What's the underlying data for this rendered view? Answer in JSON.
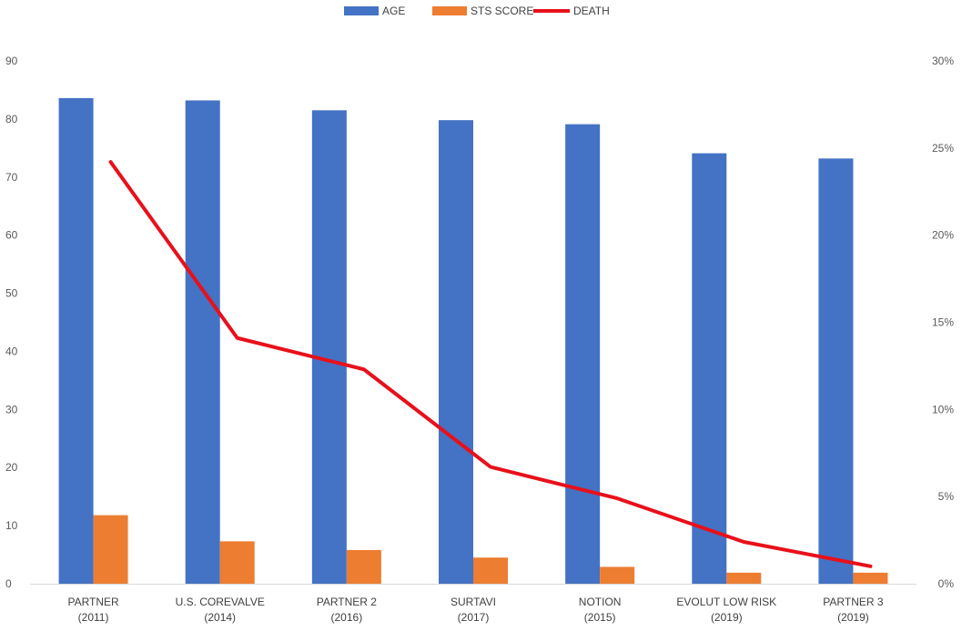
{
  "chart_data": {
    "type": "bar",
    "categories": [
      [
        "PARTNER",
        "(2011)"
      ],
      [
        "U.S. COREVALVE",
        "(2014)"
      ],
      [
        "PARTNER 2",
        "(2016)"
      ],
      [
        "SURTAVI",
        "(2017)"
      ],
      [
        "NOTION",
        "(2015)"
      ],
      [
        "EVOLUT LOW RISK",
        "(2019)"
      ],
      [
        "PARTNER 3",
        "(2019)"
      ]
    ],
    "series": [
      {
        "name": "AGE",
        "kind": "bar",
        "axis": "left",
        "color": "#4472C4",
        "values": [
          83.6,
          83.2,
          81.5,
          79.8,
          79.1,
          74.1,
          73.2
        ]
      },
      {
        "name": "STS SCORE",
        "kind": "bar",
        "axis": "left",
        "color": "#ED7D31",
        "values": [
          11.8,
          7.3,
          5.8,
          4.5,
          2.9,
          1.9,
          1.9
        ]
      },
      {
        "name": "DEATH",
        "kind": "line",
        "axis": "right",
        "color": "#E8101A",
        "values": [
          24.2,
          14.1,
          12.3,
          6.7,
          4.9,
          2.4,
          1.0
        ]
      }
    ],
    "y_left": {
      "min": 0,
      "max": 90,
      "step": 10,
      "ticks": [
        "0",
        "10",
        "20",
        "30",
        "40",
        "50",
        "60",
        "70",
        "80",
        "90"
      ]
    },
    "y_right": {
      "min": 0,
      "max": 30,
      "step": 5,
      "ticks": [
        "0%",
        "5%",
        "10%",
        "15%",
        "20%",
        "25%",
        "30%"
      ]
    },
    "legend": {
      "position": "top-center"
    },
    "grid": false
  }
}
